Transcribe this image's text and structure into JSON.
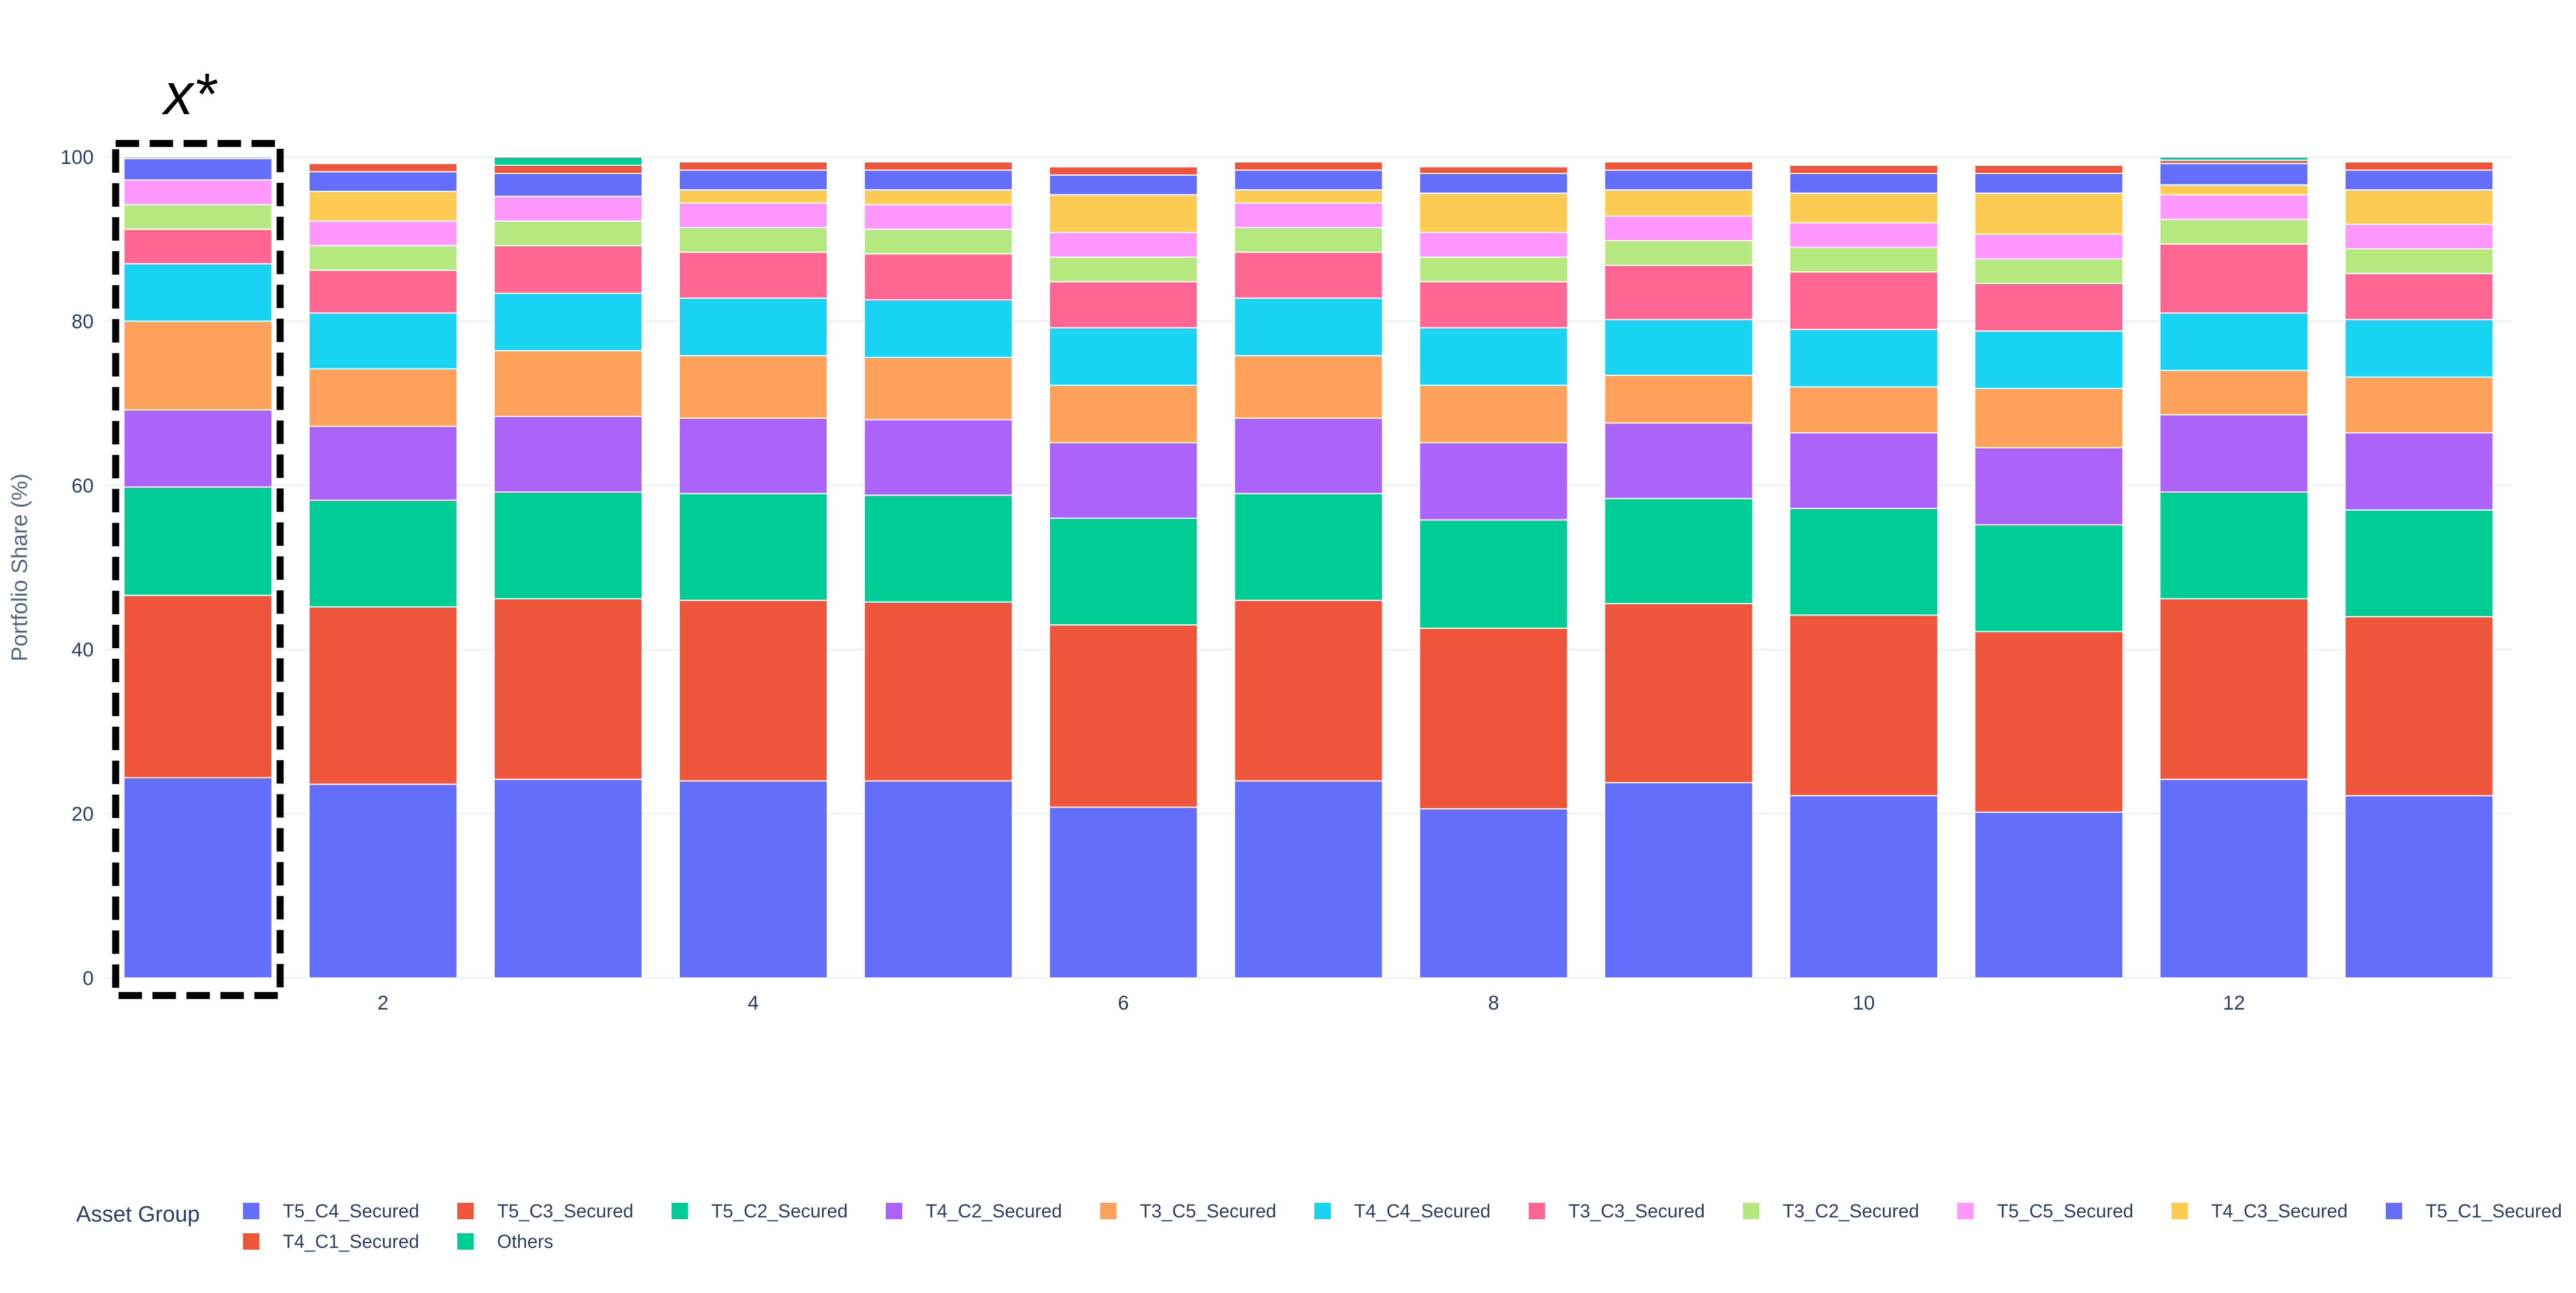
{
  "chart_data": {
    "type": "bar",
    "stacked": true,
    "ylabel": "Portfolio Share (%)",
    "xlabel": "",
    "ylim": [
      0,
      100
    ],
    "yticks": [
      0,
      20,
      40,
      60,
      80,
      100
    ],
    "xticks": [
      2,
      4,
      6,
      8,
      10,
      12
    ],
    "annotation": "x*",
    "highlighted_category": 1,
    "legend_title": "Asset Group",
    "legend_position": "bottom",
    "categories": [
      1,
      2,
      3,
      4,
      5,
      6,
      7,
      8,
      9,
      10,
      11,
      12,
      13
    ],
    "series": [
      {
        "name": "T5_C4_Secured",
        "color": "#636EFA",
        "values": [
          24.4,
          23.6,
          24.2,
          24.0,
          24.0,
          20.8,
          24.0,
          20.6,
          23.8,
          22.2,
          20.2,
          24.2,
          22.2
        ]
      },
      {
        "name": "T5_C3_Secured",
        "color": "#EF553B",
        "values": [
          22.2,
          21.6,
          22.0,
          22.0,
          21.8,
          22.2,
          22.0,
          22.0,
          21.8,
          22.0,
          22.0,
          22.0,
          21.8
        ]
      },
      {
        "name": "T5_C2_Secured",
        "color": "#00CC96",
        "values": [
          13.2,
          13.0,
          13.0,
          13.0,
          13.0,
          13.0,
          13.0,
          13.2,
          12.8,
          13.0,
          13.0,
          13.0,
          13.0
        ]
      },
      {
        "name": "T4_C2_Secured",
        "color": "#AB63FA",
        "values": [
          9.4,
          9.0,
          9.2,
          9.2,
          9.2,
          9.2,
          9.2,
          9.4,
          9.2,
          9.2,
          9.4,
          9.4,
          9.4
        ]
      },
      {
        "name": "T3_C5_Secured",
        "color": "#FFA15A",
        "values": [
          10.8,
          7.0,
          8.0,
          7.6,
          7.6,
          7.0,
          7.6,
          7.0,
          5.8,
          5.6,
          7.2,
          5.4,
          6.8
        ]
      },
      {
        "name": "T4_C4_Secured",
        "color": "#19D3F3",
        "values": [
          7.0,
          6.8,
          7.0,
          7.0,
          7.0,
          7.0,
          7.0,
          7.0,
          6.8,
          7.0,
          7.0,
          7.0,
          7.0
        ]
      },
      {
        "name": "T3_C3_Secured",
        "color": "#FF6692",
        "values": [
          4.2,
          5.2,
          5.8,
          5.6,
          5.6,
          5.6,
          5.6,
          5.6,
          6.6,
          7.0,
          5.8,
          8.4,
          5.6
        ]
      },
      {
        "name": "T3_C2_Secured",
        "color": "#B6E880",
        "values": [
          3.0,
          3.0,
          3.0,
          3.0,
          3.0,
          3.0,
          3.0,
          3.0,
          3.0,
          3.0,
          3.0,
          3.0,
          3.0
        ]
      },
      {
        "name": "T5_C5_Secured",
        "color": "#FF97FF",
        "values": [
          3.0,
          3.0,
          3.0,
          3.0,
          3.0,
          3.0,
          3.0,
          3.0,
          3.0,
          3.0,
          3.0,
          3.0,
          3.0
        ]
      },
      {
        "name": "T4_C3_Secured",
        "color": "#FECB52",
        "values": [
          0.0,
          3.6,
          0.0,
          1.6,
          1.8,
          4.6,
          1.6,
          4.8,
          3.2,
          3.6,
          5.0,
          1.2,
          4.2
        ]
      },
      {
        "name": "T5_C1_Secured",
        "color": "#636EFA",
        "values": [
          2.6,
          2.4,
          2.8,
          2.4,
          2.4,
          2.4,
          2.4,
          2.4,
          2.4,
          2.4,
          2.4,
          2.6,
          2.4
        ]
      },
      {
        "name": "T4_C1_Secured",
        "color": "#EF553B",
        "values": [
          0.2,
          1.0,
          1.0,
          1.0,
          1.0,
          1.0,
          1.0,
          0.8,
          1.0,
          1.0,
          1.0,
          0.4,
          1.0
        ]
      },
      {
        "name": "Others",
        "color": "#00CC96",
        "values": [
          0.0,
          0.0,
          1.0,
          0.0,
          0.0,
          0.0,
          0.0,
          0.0,
          0.0,
          0.0,
          0.0,
          0.4,
          0.0
        ]
      }
    ]
  },
  "colors": {
    "grid": "#E6ECF5",
    "axis_text": "#2A3F5F",
    "highlight_border": "#000000"
  }
}
